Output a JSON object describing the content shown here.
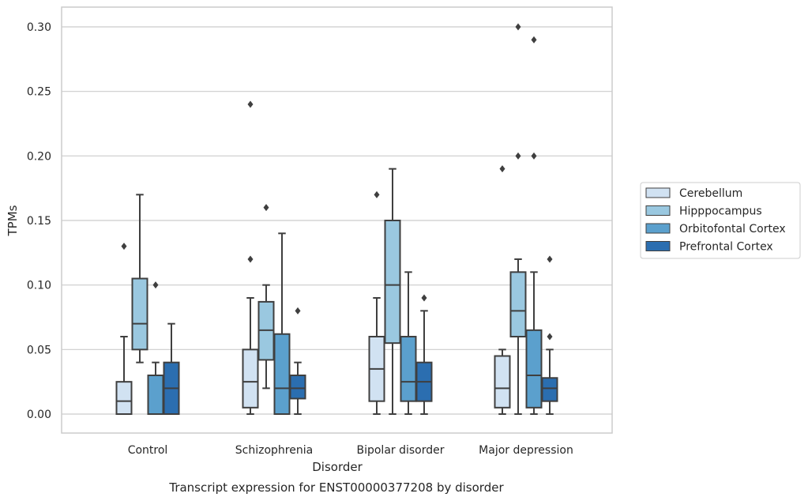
{
  "chart_data": {
    "type": "box",
    "title": "",
    "caption": "Transcript expression for ENST00000377208 by disorder",
    "xlabel": "Disorder",
    "ylabel": "TPMs",
    "ylim": [
      -0.015,
      0.315
    ],
    "yticks": [
      0.0,
      0.05,
      0.1,
      0.15,
      0.2,
      0.25,
      0.3
    ],
    "ytick_labels": [
      "0.00",
      "0.05",
      "0.10",
      "0.15",
      "0.20",
      "0.25",
      "0.30"
    ],
    "grid": "horizontal",
    "legend_position": "right",
    "categories": [
      "Control",
      "Schizophrenia",
      "Bipolar disorder",
      "Major depression"
    ],
    "series": [
      {
        "name": "Cerebellum",
        "color": "#d1e2f2",
        "boxes": [
          {
            "whislo": 0.0,
            "q1": 0.0,
            "med": 0.01,
            "q3": 0.025,
            "whishi": 0.06,
            "fliers": [
              0.13
            ]
          },
          {
            "whislo": 0.0,
            "q1": 0.005,
            "med": 0.025,
            "q3": 0.05,
            "whishi": 0.09,
            "fliers": [
              0.12,
              0.24
            ]
          },
          {
            "whislo": 0.0,
            "q1": 0.01,
            "med": 0.035,
            "q3": 0.06,
            "whishi": 0.09,
            "fliers": [
              0.17
            ]
          },
          {
            "whislo": 0.0,
            "q1": 0.005,
            "med": 0.02,
            "q3": 0.045,
            "whishi": 0.05,
            "fliers": [
              0.19
            ]
          }
        ]
      },
      {
        "name": "Hipppocampus",
        "color": "#9ac8e0",
        "boxes": [
          {
            "whislo": 0.04,
            "q1": 0.05,
            "med": 0.07,
            "q3": 0.105,
            "whishi": 0.17,
            "fliers": []
          },
          {
            "whislo": 0.02,
            "q1": 0.042,
            "med": 0.065,
            "q3": 0.087,
            "whishi": 0.1,
            "fliers": [
              0.16
            ]
          },
          {
            "whislo": 0.0,
            "q1": 0.055,
            "med": 0.1,
            "q3": 0.15,
            "whishi": 0.19,
            "fliers": []
          },
          {
            "whislo": 0.0,
            "q1": 0.06,
            "med": 0.08,
            "q3": 0.11,
            "whishi": 0.12,
            "fliers": [
              0.2,
              0.3
            ]
          }
        ]
      },
      {
        "name": "Orbitofontal Cortex",
        "color": "#5ba0cd",
        "boxes": [
          {
            "whislo": 0.0,
            "q1": 0.0,
            "med": 0.0,
            "q3": 0.03,
            "whishi": 0.04,
            "fliers": [
              0.1
            ]
          },
          {
            "whislo": 0.0,
            "q1": 0.0,
            "med": 0.02,
            "q3": 0.062,
            "whishi": 0.14,
            "fliers": []
          },
          {
            "whislo": 0.0,
            "q1": 0.01,
            "med": 0.025,
            "q3": 0.06,
            "whishi": 0.11,
            "fliers": []
          },
          {
            "whislo": 0.0,
            "q1": 0.005,
            "med": 0.03,
            "q3": 0.065,
            "whishi": 0.11,
            "fliers": [
              0.2,
              0.29
            ]
          }
        ]
      },
      {
        "name": "Prefrontal Cortex",
        "color": "#2b6eb0",
        "boxes": [
          {
            "whislo": 0.0,
            "q1": 0.0,
            "med": 0.02,
            "q3": 0.04,
            "whishi": 0.07,
            "fliers": []
          },
          {
            "whislo": 0.0,
            "q1": 0.012,
            "med": 0.02,
            "q3": 0.03,
            "whishi": 0.04,
            "fliers": [
              0.08
            ]
          },
          {
            "whislo": 0.0,
            "q1": 0.01,
            "med": 0.025,
            "q3": 0.04,
            "whishi": 0.08,
            "fliers": [
              0.09
            ]
          },
          {
            "whislo": 0.0,
            "q1": 0.01,
            "med": 0.02,
            "q3": 0.028,
            "whishi": 0.05,
            "fliers": [
              0.06,
              0.12
            ]
          }
        ]
      }
    ]
  }
}
